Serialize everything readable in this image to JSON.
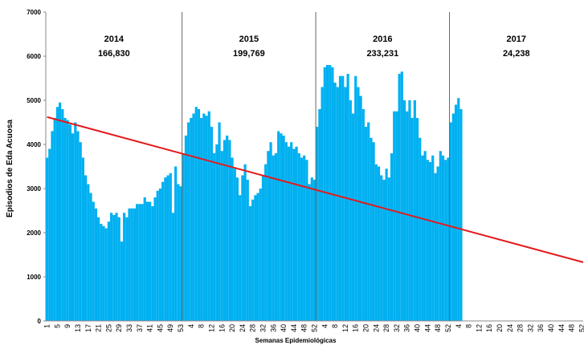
{
  "chart_data": {
    "type": "bar",
    "y_label": "Episodios de Eda  Acuosa",
    "x_label": "Semanas Epidemiológicas",
    "color": "#00b0f0",
    "ylim": [
      0,
      7000
    ],
    "yticks": [
      0,
      1000,
      2000,
      3000,
      4000,
      5000,
      6000,
      7000
    ],
    "categories": [
      "1",
      null,
      null,
      null,
      "5",
      null,
      null,
      null,
      "9",
      null,
      null,
      null,
      "13",
      null,
      null,
      null,
      "17",
      null,
      null,
      null,
      "21",
      null,
      null,
      null,
      "25",
      null,
      null,
      null,
      "29",
      null,
      null,
      null,
      "33",
      null,
      null,
      null,
      "37",
      null,
      null,
      null,
      "41",
      null,
      null,
      null,
      "45",
      null,
      null,
      null,
      "49",
      null,
      null,
      null,
      "53",
      null,
      null,
      null,
      "4",
      null,
      null,
      null,
      "8",
      null,
      null,
      null,
      "12",
      null,
      null,
      null,
      "16",
      null,
      null,
      null,
      "20",
      null,
      null,
      null,
      "24",
      null,
      null,
      null,
      "28",
      null,
      null,
      null,
      "32",
      null,
      null,
      null,
      "36",
      null,
      null,
      null,
      "40",
      null,
      null,
      null,
      "44",
      null,
      null,
      null,
      "48",
      null,
      null,
      null,
      "52",
      null,
      null,
      null,
      "4",
      null,
      null,
      null,
      "8",
      null,
      null,
      null,
      "12",
      null,
      null,
      null,
      "16",
      null,
      null,
      null,
      "20",
      null,
      null,
      null,
      "24",
      null,
      null,
      null,
      "28",
      null,
      null,
      null,
      "32",
      null,
      null,
      null,
      "36",
      null,
      null,
      null,
      "40",
      null,
      null,
      null,
      "44",
      null,
      null,
      null,
      "48",
      null,
      null,
      null,
      "52",
      null,
      null,
      null,
      "4",
      null,
      null,
      null,
      "8",
      null,
      null,
      null,
      "12",
      null,
      null,
      null,
      "16",
      null,
      null,
      null,
      "20",
      null,
      null,
      null,
      "24",
      null,
      null,
      null,
      "28",
      null,
      null,
      null,
      "32",
      null,
      null,
      null,
      "36",
      null,
      null,
      null,
      "40",
      null,
      null,
      null,
      "44",
      null,
      null,
      null,
      "48",
      null,
      null,
      null,
      "52"
    ],
    "values": [
      3700,
      3900,
      4300,
      4600,
      4850,
      4950,
      4800,
      4600,
      4550,
      4450,
      4250,
      4500,
      4300,
      4050,
      3700,
      3300,
      3100,
      2900,
      2700,
      2550,
      2350,
      2200,
      2150,
      2100,
      2250,
      2450,
      2400,
      2450,
      2350,
      1800,
      2450,
      2350,
      2550,
      2550,
      2550,
      2650,
      2650,
      2650,
      2800,
      2700,
      2700,
      2600,
      2800,
      2950,
      3000,
      3150,
      3250,
      3300,
      3350,
      2450,
      3500,
      3100,
      3050,
      3800,
      4200,
      4500,
      4600,
      4700,
      4850,
      4800,
      4600,
      4700,
      4650,
      4750,
      4400,
      3800,
      4000,
      4500,
      3850,
      4100,
      4200,
      4100,
      3700,
      3450,
      3250,
      2850,
      3300,
      3550,
      3200,
      2600,
      2750,
      2850,
      2900,
      3000,
      3300,
      3550,
      3850,
      4050,
      3750,
      3800,
      4300,
      4250,
      4200,
      4050,
      3950,
      4050,
      3900,
      3950,
      3800,
      3700,
      3750,
      3650,
      3100,
      3250,
      3200,
      4400,
      4800,
      5300,
      5750,
      5800,
      5800,
      5750,
      5400,
      5300,
      5550,
      5550,
      5300,
      5600,
      5000,
      4700,
      5550,
      5300,
      5100,
      4800,
      4400,
      4500,
      4150,
      4050,
      3550,
      3500,
      3300,
      3200,
      3450,
      3250,
      3800,
      4750,
      4750,
      5600,
      5650,
      5000,
      4750,
      5000,
      4600,
      5000,
      4600,
      4150,
      3750,
      3850,
      3650,
      3600,
      3750,
      3350,
      3500,
      3850,
      3750,
      3650,
      3700,
      4500,
      4700,
      4900,
      5050,
      4800,
      null,
      null,
      null,
      null,
      null,
      null,
      null,
      null,
      null,
      null,
      null,
      null,
      null,
      null,
      null,
      null,
      null,
      null,
      null,
      null,
      null,
      null,
      null,
      null,
      null,
      null,
      null,
      null,
      null,
      null,
      null,
      null,
      null,
      null,
      null,
      null,
      null,
      null,
      null,
      null,
      null,
      null,
      null,
      null,
      null,
      null,
      null
    ],
    "trendline": {
      "color": "#e41a1c",
      "start": 4620,
      "end": 1330
    },
    "periods": [
      {
        "label": "2014",
        "total": "166,830",
        "weeks": 53
      },
      {
        "label": "2015",
        "total": "199,769",
        "weeks": 52
      },
      {
        "label": "2016",
        "total": "233,231",
        "weeks": 52
      },
      {
        "label": "2017",
        "total": "24,238",
        "weeks": 52
      }
    ]
  }
}
